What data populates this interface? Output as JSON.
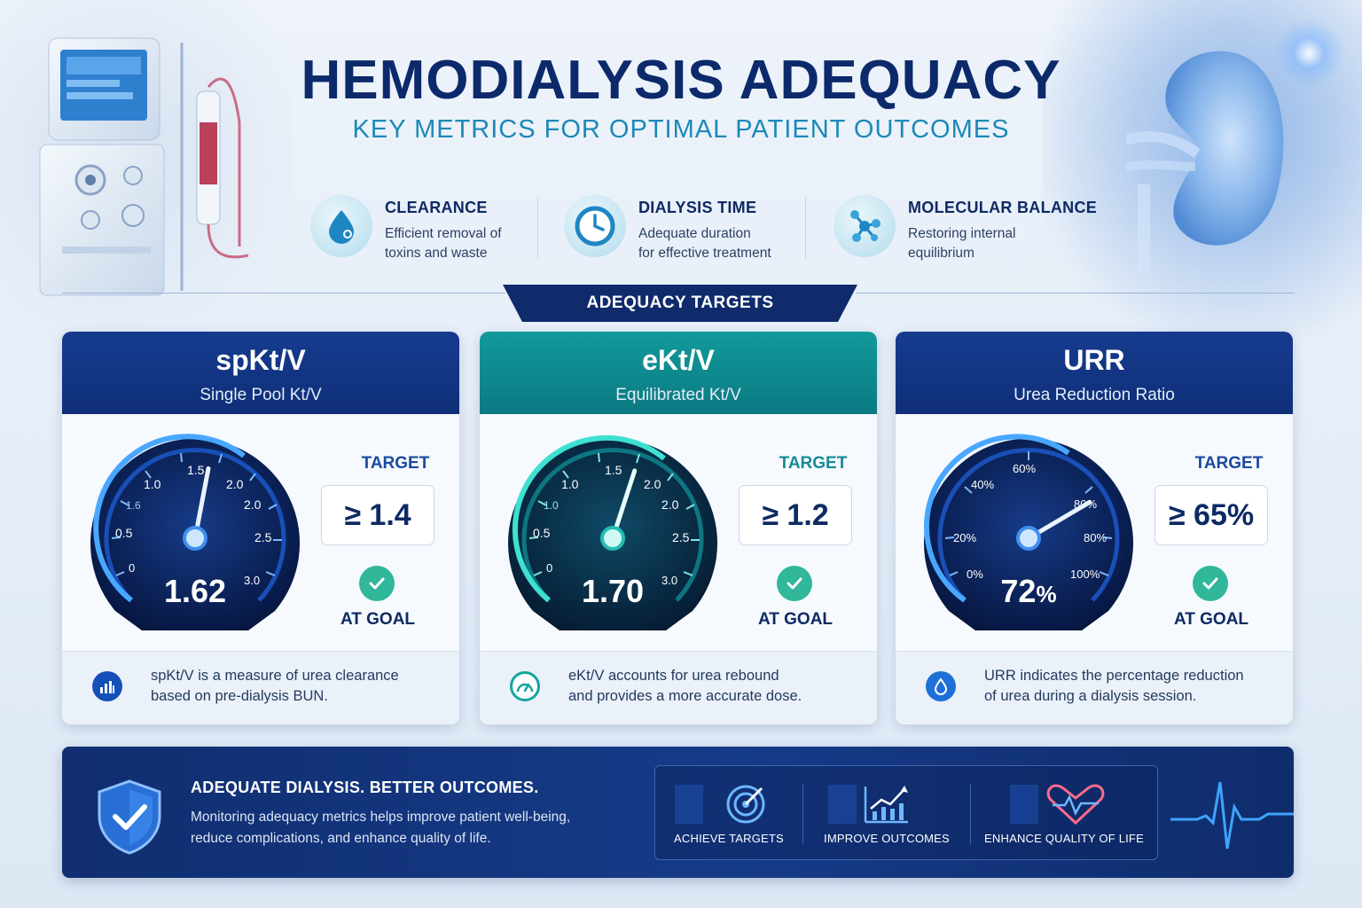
{
  "header": {
    "title": "HEMODIALYSIS ADEQUACY",
    "subtitle": "KEY METRICS FOR OPTIMAL PATIENT OUTCOMES"
  },
  "features": [
    {
      "title": "CLEARANCE",
      "desc_line1": "Efficient removal of",
      "desc_line2": "toxins and waste",
      "icon": "droplet-icon"
    },
    {
      "title": "DIALYSIS TIME",
      "desc_line1": "Adequate duration",
      "desc_line2": "for effective treatment",
      "icon": "clock-icon"
    },
    {
      "title": "MOLECULAR BALANCE",
      "desc_line1": "Restoring internal",
      "desc_line2": "equilibrium",
      "icon": "molecule-icon"
    }
  ],
  "section_banner": "ADEQUACY TARGETS",
  "cards": [
    {
      "title": "spKt/V",
      "subtitle": "Single Pool Kt/V",
      "value": "1.62",
      "value_numeric": 1.62,
      "scale_min": 0,
      "scale_max": 3.0,
      "ticks": [
        "0",
        "0.5",
        "1.0",
        "1.5",
        "2.0",
        "2.5",
        "3.0"
      ],
      "extra_ticks": [
        "1.6",
        "2.0"
      ],
      "target_label": "TARGET",
      "target": "≥ 1.4",
      "status": "AT GOAL",
      "footer_line1": "spKt/V is a measure of urea clearance",
      "footer_line2": "based on pre-dialysis BUN.",
      "accent": "#1e6fe0"
    },
    {
      "title": "eKt/V",
      "subtitle": "Equilibrated Kt/V",
      "value": "1.70",
      "value_numeric": 1.7,
      "scale_min": 0,
      "scale_max": 3.0,
      "ticks": [
        "0",
        "0.5",
        "1.0",
        "1.5",
        "2.0",
        "2.5",
        "3.0"
      ],
      "extra_ticks": [
        "1.0",
        "2.0"
      ],
      "target_label": "TARGET",
      "target": "≥ 1.2",
      "status": "AT GOAL",
      "footer_line1": "eKt/V accounts for urea rebound",
      "footer_line2": "and provides a more accurate dose.",
      "accent": "#19b8b0"
    },
    {
      "title": "URR",
      "subtitle": "Urea Reduction Ratio",
      "value_number": "72",
      "value_unit": "%",
      "value_numeric": 72,
      "scale_min": 0,
      "scale_max": 100,
      "ticks": [
        "0%",
        "20%",
        "40%",
        "60%",
        "80%",
        "100%"
      ],
      "extra_ticks": [
        "80%"
      ],
      "target_label": "TARGET",
      "target": "≥ 65%",
      "status": "AT GOAL",
      "footer_line1": "URR indicates the percentage reduction",
      "footer_line2": "of urea during a dialysis session.",
      "accent": "#1e6fe0"
    }
  ],
  "bottom": {
    "title": "ADEQUATE DIALYSIS. BETTER OUTCOMES.",
    "desc_line1": "Monitoring adequacy metrics helps improve patient well-being,",
    "desc_line2": "reduce complications, and enhance quality of life.",
    "items": [
      {
        "label": "ACHIEVE TARGETS",
        "icon": "target-icon"
      },
      {
        "label": "IMPROVE OUTCOMES",
        "icon": "growth-chart-icon"
      },
      {
        "label": "ENHANCE QUALITY OF LIFE",
        "icon": "heart-pulse-icon"
      }
    ]
  },
  "colors": {
    "navy": "#0c2a6b",
    "teal": "#0b7a82",
    "subtitle_blue": "#1c89b8",
    "goal_green": "#31b79a"
  }
}
